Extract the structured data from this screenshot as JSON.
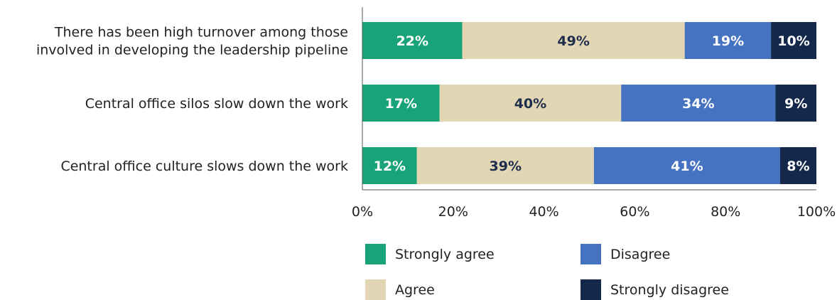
{
  "chart_data": {
    "type": "bar",
    "orientation": "horizontal",
    "stacked": true,
    "categories": [
      [
        "There has been high turnover among those",
        "involved in developing the leadership pipeline"
      ],
      [
        "Central office silos slow down the work"
      ],
      [
        "Central office culture slows down the work"
      ]
    ],
    "series": [
      {
        "name": "Strongly agree",
        "values": [
          22,
          17,
          12
        ],
        "color": "#1aa378",
        "label_color": "#ffffff"
      },
      {
        "name": "Agree",
        "values": [
          49,
          40,
          39
        ],
        "color": "#e3d6b5",
        "label_color": "#1f2d4c"
      },
      {
        "name": "Disagree",
        "values": [
          19,
          34,
          41
        ],
        "color": "#4572c1",
        "label_color": "#ffffff"
      },
      {
        "name": "Strongly disagree",
        "values": [
          10,
          9,
          8
        ],
        "color": "#13284a",
        "label_color": "#ffffff"
      }
    ],
    "value_suffix": "%",
    "xlim": [
      0,
      100
    ],
    "x_ticks": [
      "0%",
      "20%",
      "40%",
      "60%",
      "80%",
      "100%"
    ],
    "grid": false,
    "legend_position": "bottom"
  }
}
